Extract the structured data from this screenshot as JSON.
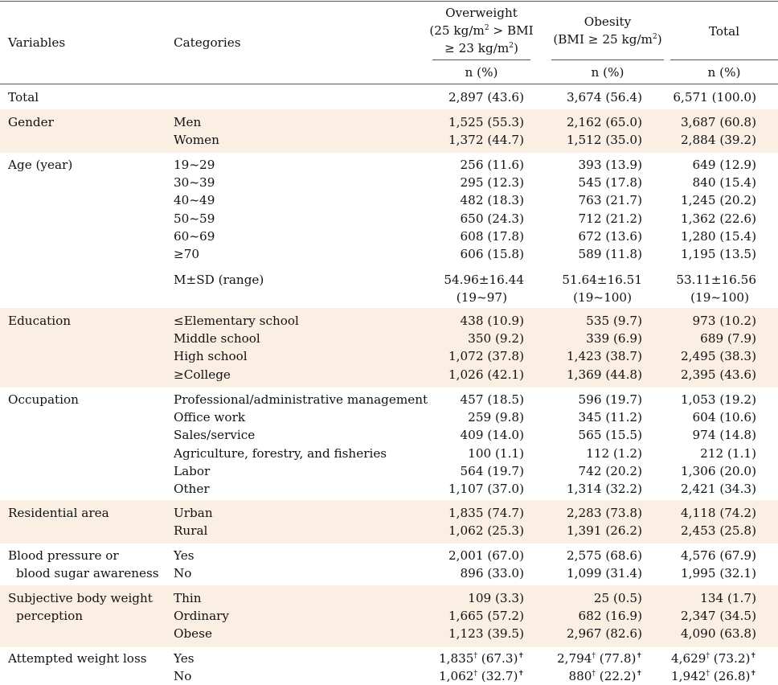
{
  "header": {
    "variables": "Variables",
    "categories": "Categories",
    "overweight_l1": "Overweight",
    "overweight_l2": "(25 kg/m",
    "overweight_l2b": "2",
    "overweight_l2c": " > BMI",
    "overweight_l3": "≥ 23 kg/m",
    "overweight_l3b": "2",
    "overweight_l3c": ")",
    "obesity_l1": "Obesity",
    "obesity_l2": "(BMI ≥ 25 kg/m",
    "obesity_l2b": "2",
    "obesity_l2c": ")",
    "total": "Total",
    "unit": "n (%)"
  },
  "groups": [
    {
      "variable": [
        "Total"
      ],
      "shaded": false,
      "rows": [
        {
          "cat": "",
          "ow": "2,897 (43.6)",
          "ob": "3,674 (56.4)",
          "tot": "6,571 (100.0)"
        }
      ]
    },
    {
      "variable": [
        "Gender"
      ],
      "shaded": true,
      "rows": [
        {
          "cat": "Men",
          "ow": "1,525 (55.3)",
          "ob": "2,162 (65.0)",
          "tot": "3,687 (60.8)"
        },
        {
          "cat": "Women",
          "ow": "1,372 (44.7)",
          "ob": "1,512 (35.0)",
          "tot": "2,884 (39.2)"
        }
      ]
    },
    {
      "variable": [
        "Age (year)"
      ],
      "shaded": false,
      "rows": [
        {
          "cat": "19~29",
          "ow": "256 (11.6)",
          "ob": "393 (13.9)",
          "tot": "649 (12.9)"
        },
        {
          "cat": "30~39",
          "ow": "295 (12.3)",
          "ob": "545 (17.8)",
          "tot": "840 (15.4)"
        },
        {
          "cat": "40~49",
          "ow": "482 (18.3)",
          "ob": "763 (21.7)",
          "tot": "1,245 (20.2)"
        },
        {
          "cat": "50~59",
          "ow": "650 (24.3)",
          "ob": "712 (21.2)",
          "tot": "1,362 (22.6)"
        },
        {
          "cat": "60~69",
          "ow": "608 (17.8)",
          "ob": "672 (13.6)",
          "tot": "1,280 (15.4)"
        },
        {
          "cat": "≥70",
          "ow": "606 (15.8)",
          "ob": "589 (11.8)",
          "tot": "1,195 (13.5)"
        },
        {
          "cat": "M±SD (range)",
          "ow": "54.96±16.44",
          "ob": "51.64±16.51",
          "tot": "53.11±16.56",
          "ow2": "(19~97)",
          "ob2": "(19~100)",
          "tot2": "(19~100)"
        }
      ]
    },
    {
      "variable": [
        "Education"
      ],
      "shaded": true,
      "rows": [
        {
          "cat": "≤Elementary school",
          "ow": "438 (10.9)",
          "ob": "535 (9.7)",
          "tot": "973 (10.2)"
        },
        {
          "cat": "Middle school",
          "ow": "350 (9.2)",
          "ob": "339 (6.9)",
          "tot": "689 (7.9)"
        },
        {
          "cat": "High school",
          "ow": "1,072 (37.8)",
          "ob": "1,423 (38.7)",
          "tot": "2,495 (38.3)"
        },
        {
          "cat": "≥College",
          "ow": "1,026 (42.1)",
          "ob": "1,369 (44.8)",
          "tot": "2,395 (43.6)"
        }
      ]
    },
    {
      "variable": [
        "Occupation"
      ],
      "shaded": false,
      "rows": [
        {
          "cat": "Professional/administrative management",
          "ow": "457 (18.5)",
          "ob": "596 (19.7)",
          "tot": "1,053 (19.2)"
        },
        {
          "cat": "Office work",
          "ow": "259 (9.8)",
          "ob": "345 (11.2)",
          "tot": "604 (10.6)"
        },
        {
          "cat": "Sales/service",
          "ow": "409 (14.0)",
          "ob": "565 (15.5)",
          "tot": "974 (14.8)"
        },
        {
          "cat": "Agriculture, forestry, and fisheries",
          "ow": "100 (1.1)",
          "ob": "112 (1.2)",
          "tot": "212 (1.1)"
        },
        {
          "cat": "Labor",
          "ow": "564 (19.7)",
          "ob": "742 (20.2)",
          "tot": "1,306 (20.0)"
        },
        {
          "cat": "Other",
          "ow": "1,107 (37.0)",
          "ob": "1,314 (32.2)",
          "tot": "2,421 (34.3)"
        }
      ]
    },
    {
      "variable": [
        "Residential area"
      ],
      "shaded": true,
      "rows": [
        {
          "cat": "Urban",
          "ow": "1,835 (74.7)",
          "ob": "2,283 (73.8)",
          "tot": "4,118 (74.2)"
        },
        {
          "cat": "Rural",
          "ow": "1,062 (25.3)",
          "ob": "1,391 (26.2)",
          "tot": "2,453 (25.8)"
        }
      ]
    },
    {
      "variable": [
        "Blood pressure or",
        "blood sugar awareness"
      ],
      "shaded": false,
      "rows": [
        {
          "cat": "Yes",
          "ow": "2,001 (67.0)",
          "ob": "2,575 (68.6)",
          "tot": "4,576 (67.9)"
        },
        {
          "cat": "No",
          "ow": "896 (33.0)",
          "ob": "1,099 (31.4)",
          "tot": "1,995 (32.1)"
        }
      ]
    },
    {
      "variable": [
        "Subjective body weight",
        "perception"
      ],
      "shaded": true,
      "rows": [
        {
          "cat": "Thin",
          "ow": "109 (3.3)",
          "ob": "25 (0.5)",
          "tot": "134 (1.7)"
        },
        {
          "cat": "Ordinary",
          "ow": "1,665 (57.2)",
          "ob": "682 (16.9)",
          "tot": "2,347 (34.5)"
        },
        {
          "cat": "Obese",
          "ow": "1,123 (39.5)",
          "ob": "2,967 (82.6)",
          "tot": "4,090 (63.8)"
        }
      ]
    },
    {
      "variable": [
        "Attempted weight loss"
      ],
      "shaded": false,
      "rows": [
        {
          "cat": "Yes",
          "ow_a": "1,835",
          "ow_b": " (67.3)",
          "ob_a": "2,794",
          "ob_b": " (77.8)",
          "tot_a": "4,629",
          "tot_b": " (73.2)",
          "dag1": "†",
          "dag2": "✝"
        },
        {
          "cat": "No",
          "ow_a": "1,062",
          "ow_b": " (32.7)",
          "ob_a": "880",
          "ob_b": " (22.2)",
          "tot_a": "1,942",
          "tot_b": " (26.8)",
          "dag1": "†",
          "dag2": "✝"
        }
      ]
    }
  ]
}
